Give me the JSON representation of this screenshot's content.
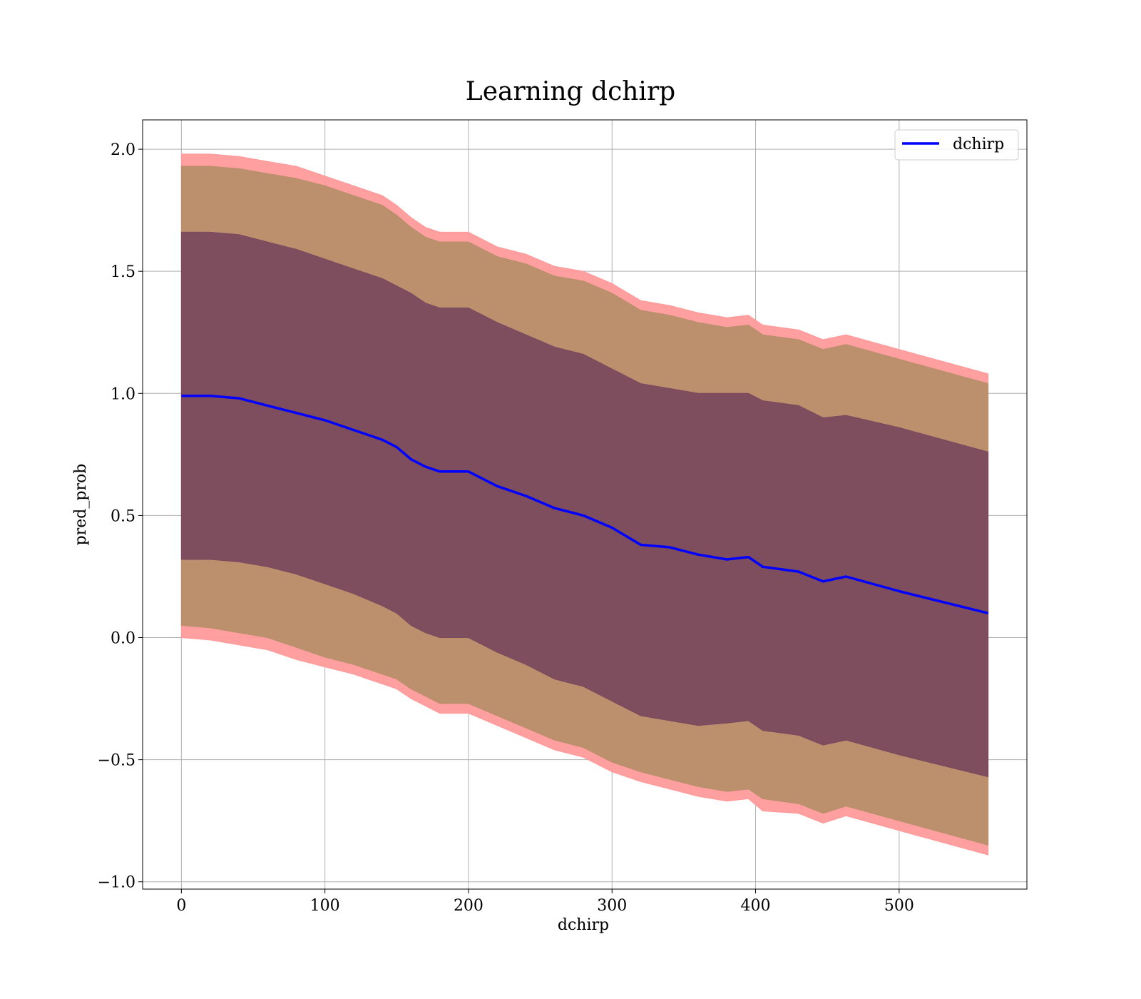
{
  "chart_data": {
    "type": "line",
    "title": "Learning dchirp",
    "xlabel": "dchirp",
    "ylabel": "pred_prob",
    "xlim": [
      -27,
      589
    ],
    "ylim": [
      -1.03,
      2.12
    ],
    "xticks": [
      0,
      100,
      200,
      300,
      400,
      500
    ],
    "yticks": [
      -1.0,
      -0.5,
      0.0,
      0.5,
      1.0,
      1.5,
      2.0
    ],
    "xtick_labels": [
      "0",
      "100",
      "200",
      "300",
      "400",
      "500"
    ],
    "ytick_labels": [
      "−1.0",
      "−0.5",
      "0.0",
      "0.5",
      "1.0",
      "1.5",
      "2.0"
    ],
    "grid": true,
    "legend": {
      "position": "top-right",
      "entries": [
        "dchirp"
      ]
    },
    "colors": {
      "line": "#0000ff",
      "band_outer": "#ff9a9a",
      "band_middle": "#b88f6a",
      "band_inner": "#7a4a5e"
    },
    "x": [
      0,
      20,
      40,
      60,
      80,
      100,
      120,
      140,
      150,
      160,
      170,
      180,
      200,
      220,
      240,
      260,
      280,
      300,
      320,
      340,
      360,
      380,
      395,
      405,
      430,
      447,
      463,
      500,
      562
    ],
    "series": [
      {
        "name": "dchirp",
        "values": [
          0.99,
          0.99,
          0.98,
          0.95,
          0.92,
          0.89,
          0.85,
          0.81,
          0.78,
          0.73,
          0.7,
          0.68,
          0.68,
          0.62,
          0.58,
          0.53,
          0.5,
          0.45,
          0.38,
          0.37,
          0.34,
          0.32,
          0.33,
          0.29,
          0.27,
          0.23,
          0.25,
          0.19,
          0.1
        ]
      }
    ],
    "bands": [
      {
        "lower": [
          0.0,
          -0.01,
          -0.03,
          -0.05,
          -0.09,
          -0.12,
          -0.15,
          -0.19,
          -0.21,
          -0.25,
          -0.28,
          -0.31,
          -0.31,
          -0.36,
          -0.41,
          -0.46,
          -0.49,
          -0.55,
          -0.59,
          -0.62,
          -0.65,
          -0.67,
          -0.66,
          -0.71,
          -0.72,
          -0.76,
          -0.73,
          -0.79,
          -0.89
        ],
        "upper": [
          1.98,
          1.98,
          1.97,
          1.95,
          1.93,
          1.89,
          1.85,
          1.81,
          1.77,
          1.72,
          1.68,
          1.66,
          1.66,
          1.6,
          1.57,
          1.52,
          1.5,
          1.45,
          1.38,
          1.36,
          1.33,
          1.31,
          1.32,
          1.28,
          1.26,
          1.22,
          1.24,
          1.18,
          1.08
        ]
      },
      {
        "lower": [
          0.05,
          0.04,
          0.02,
          0.0,
          -0.04,
          -0.08,
          -0.11,
          -0.15,
          -0.17,
          -0.21,
          -0.24,
          -0.27,
          -0.27,
          -0.32,
          -0.37,
          -0.42,
          -0.45,
          -0.51,
          -0.55,
          -0.58,
          -0.61,
          -0.63,
          -0.62,
          -0.66,
          -0.68,
          -0.72,
          -0.69,
          -0.75,
          -0.85
        ],
        "upper": [
          1.93,
          1.93,
          1.92,
          1.9,
          1.88,
          1.85,
          1.81,
          1.77,
          1.73,
          1.68,
          1.64,
          1.62,
          1.62,
          1.56,
          1.53,
          1.48,
          1.46,
          1.41,
          1.34,
          1.32,
          1.29,
          1.27,
          1.28,
          1.24,
          1.22,
          1.18,
          1.2,
          1.14,
          1.04
        ]
      },
      {
        "lower": [
          0.32,
          0.32,
          0.31,
          0.29,
          0.26,
          0.22,
          0.18,
          0.13,
          0.1,
          0.05,
          0.02,
          0.0,
          0.0,
          -0.06,
          -0.11,
          -0.17,
          -0.2,
          -0.26,
          -0.32,
          -0.34,
          -0.36,
          -0.35,
          -0.34,
          -0.38,
          -0.4,
          -0.44,
          -0.42,
          -0.48,
          -0.57
        ],
        "upper": [
          1.66,
          1.66,
          1.65,
          1.62,
          1.59,
          1.55,
          1.51,
          1.47,
          1.44,
          1.41,
          1.37,
          1.35,
          1.35,
          1.29,
          1.24,
          1.19,
          1.16,
          1.1,
          1.04,
          1.02,
          1.0,
          1.0,
          1.0,
          0.97,
          0.95,
          0.9,
          0.91,
          0.86,
          0.76
        ]
      }
    ]
  }
}
